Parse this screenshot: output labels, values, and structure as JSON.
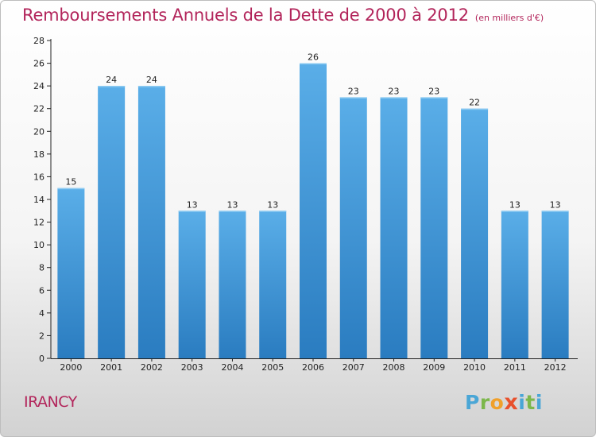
{
  "chart_data": {
    "type": "bar",
    "title": "Remboursements Annuels de la Dette de 2000 à 2012",
    "subtitle": "(en milliers d'€)",
    "categories": [
      "2000",
      "2001",
      "2002",
      "2003",
      "2004",
      "2005",
      "2006",
      "2007",
      "2008",
      "2009",
      "2010",
      "2011",
      "2012"
    ],
    "values": [
      15,
      24,
      24,
      13,
      13,
      13,
      26,
      23,
      23,
      23,
      22,
      13,
      13
    ],
    "ylim": [
      0,
      28
    ],
    "yticks": [
      0,
      2,
      4,
      6,
      8,
      10,
      12,
      14,
      16,
      18,
      20,
      22,
      24,
      26,
      28
    ],
    "grid": false,
    "bar_color": "#3d92d6",
    "bar_color_top": "#5aaee8"
  },
  "location": "IRANCY",
  "brand": {
    "letters": [
      "P",
      "r",
      "o",
      "x",
      "i",
      "t",
      "i"
    ]
  },
  "colors": {
    "title": "#b2245a",
    "axis": "#222222"
  }
}
